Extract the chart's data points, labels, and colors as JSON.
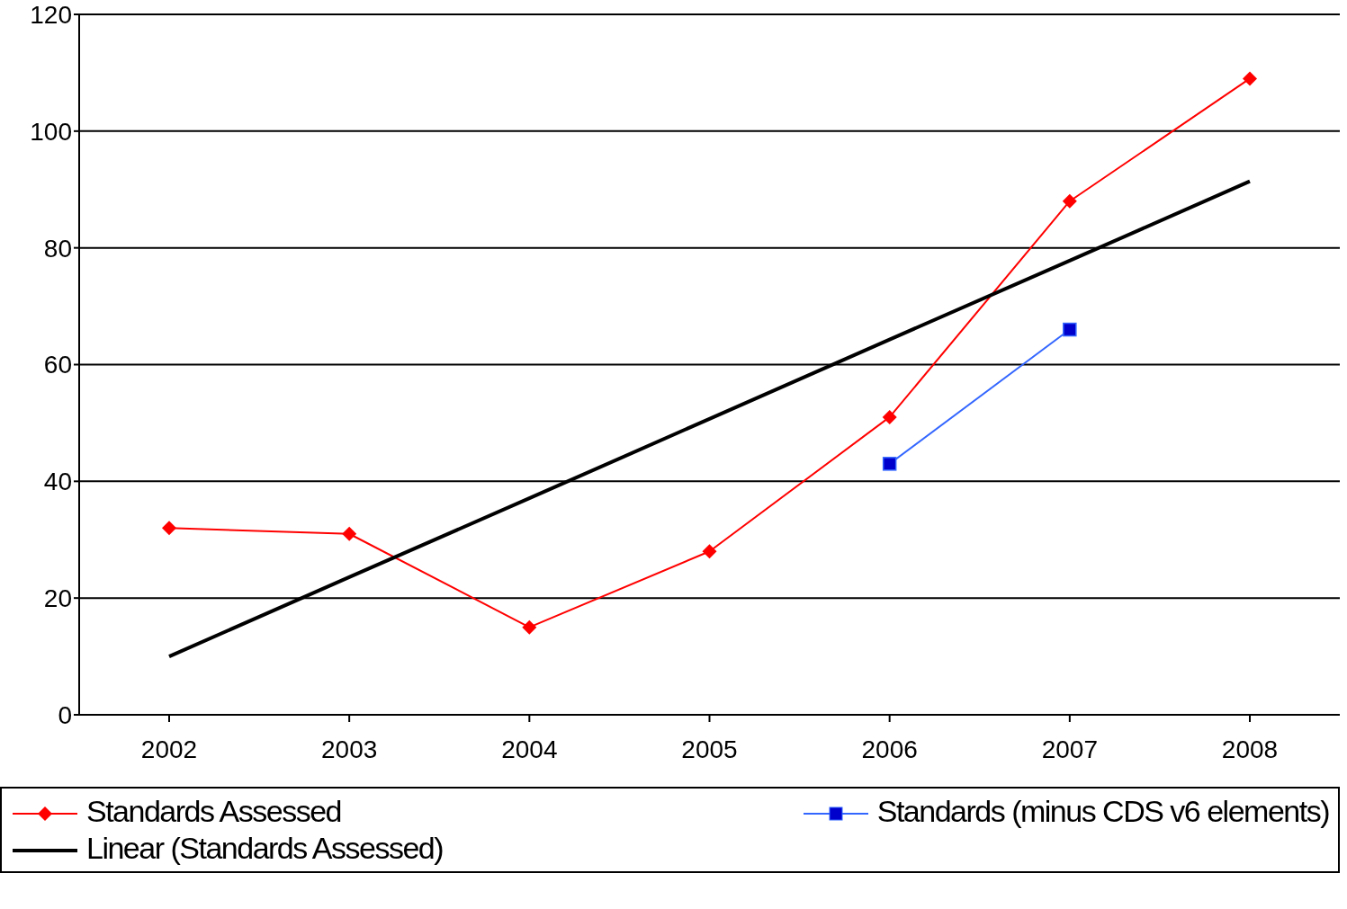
{
  "chart_data": {
    "type": "line",
    "categories": [
      "2002",
      "2003",
      "2004",
      "2005",
      "2006",
      "2007",
      "2008"
    ],
    "series": [
      {
        "name": "Standards Assessed",
        "color": "#ff0000",
        "marker": "diamond",
        "values": [
          32,
          31,
          15,
          28,
          51,
          88,
          109
        ]
      },
      {
        "name": "Standards (minus CDS v6 elements)",
        "color": "#3366ff",
        "marker": "square",
        "values": [
          null,
          null,
          null,
          null,
          43,
          66,
          null
        ]
      },
      {
        "name": "Linear (Standards Assessed)",
        "color": "#000000",
        "marker": "none",
        "values": [
          10,
          23.6,
          37.1,
          50.7,
          64.3,
          77.8,
          91.4
        ]
      }
    ],
    "ylim": [
      0,
      120
    ],
    "yticks": [
      0,
      20,
      40,
      60,
      80,
      100,
      120
    ],
    "grid": "y",
    "legend": "bottom",
    "line_style": "solid"
  }
}
